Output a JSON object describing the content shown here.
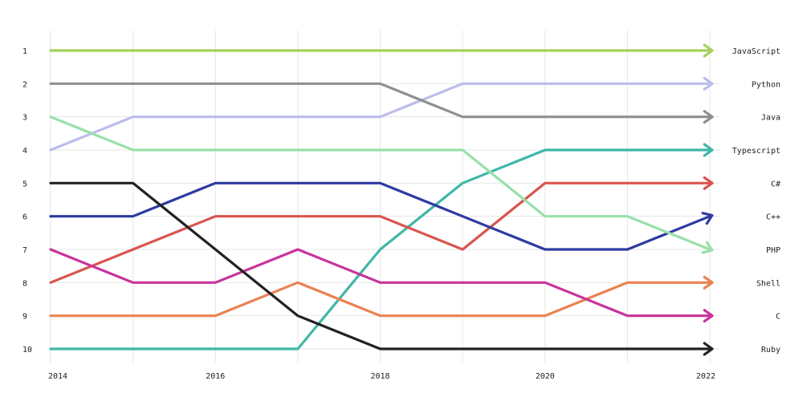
{
  "chart_data": {
    "type": "line",
    "title": "",
    "xlabel": "",
    "ylabel": "",
    "x": [
      2014,
      2015,
      2016,
      2017,
      2018,
      2019,
      2020,
      2021,
      2022
    ],
    "x_tick_labels": [
      "2014",
      "2016",
      "2018",
      "2020",
      "2022"
    ],
    "x_tick_values": [
      2014,
      2016,
      2018,
      2020,
      2022
    ],
    "y_tick_labels": [
      "1",
      "2",
      "3",
      "4",
      "5",
      "6",
      "7",
      "8",
      "9",
      "10"
    ],
    "ylim": [
      1,
      10
    ],
    "y_inverted": true,
    "grid": true,
    "legend": "end-labels",
    "series": [
      {
        "name": "JavaScript",
        "color": "#a6d05a",
        "values": [
          1,
          1,
          1,
          1,
          1,
          1,
          1,
          1,
          1
        ]
      },
      {
        "name": "Python",
        "color": "#bcbcec",
        "values": [
          4,
          3,
          3,
          3,
          3,
          2,
          2,
          2,
          2
        ]
      },
      {
        "name": "Java",
        "color": "#8f8f8f",
        "values": [
          2,
          2,
          2,
          2,
          2,
          3,
          3,
          3,
          3
        ]
      },
      {
        "name": "Typescript",
        "color": "#3fb7a6",
        "values": [
          10,
          10,
          10,
          10,
          7,
          5,
          4,
          4,
          4
        ]
      },
      {
        "name": "C#",
        "color": "#d9554d",
        "values": [
          8,
          7,
          6,
          6,
          6,
          7,
          5,
          5,
          5
        ]
      },
      {
        "name": "C++",
        "color": "#2d3aa0",
        "values": [
          6,
          6,
          5,
          5,
          5,
          6,
          7,
          7,
          6
        ]
      },
      {
        "name": "PHP",
        "color": "#98e0a8",
        "values": [
          3,
          4,
          4,
          4,
          4,
          4,
          6,
          6,
          7
        ]
      },
      {
        "name": "Shell",
        "color": "#eb8152",
        "values": [
          9,
          9,
          9,
          8,
          9,
          9,
          9,
          8,
          8
        ]
      },
      {
        "name": "C",
        "color": "#c9339a",
        "values": [
          7,
          8,
          8,
          7,
          8,
          8,
          8,
          9,
          9
        ]
      },
      {
        "name": "Ruby",
        "color": "#222222",
        "values": [
          5,
          5,
          7,
          9,
          10,
          10,
          10,
          10,
          10
        ]
      }
    ]
  }
}
